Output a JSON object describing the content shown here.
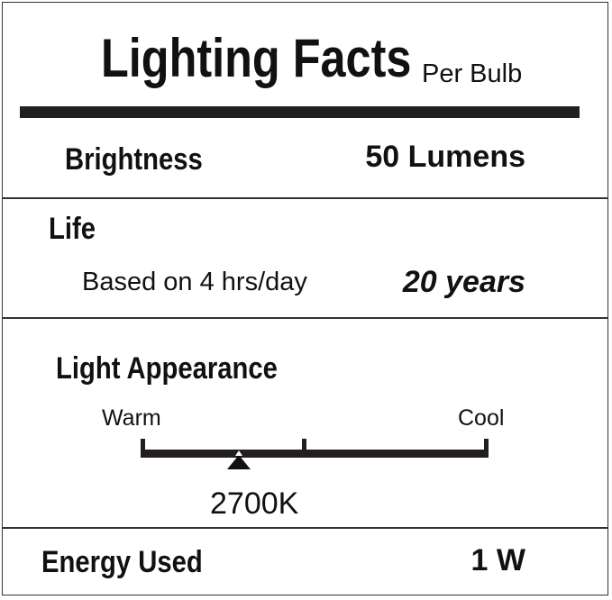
{
  "header": {
    "title": "Lighting Facts",
    "per": "Per Bulb"
  },
  "brightness": {
    "label": "Brightness",
    "value": "50 Lumens"
  },
  "life": {
    "label": "Life",
    "note": "Based on 4 hrs/day",
    "value": "20 years"
  },
  "appearance": {
    "label": "Light Appearance",
    "warm_label": "Warm",
    "cool_label": "Cool",
    "value": "2700K",
    "position_fraction": 0.28
  },
  "energy": {
    "label": "Energy Used",
    "value": "1 W"
  }
}
